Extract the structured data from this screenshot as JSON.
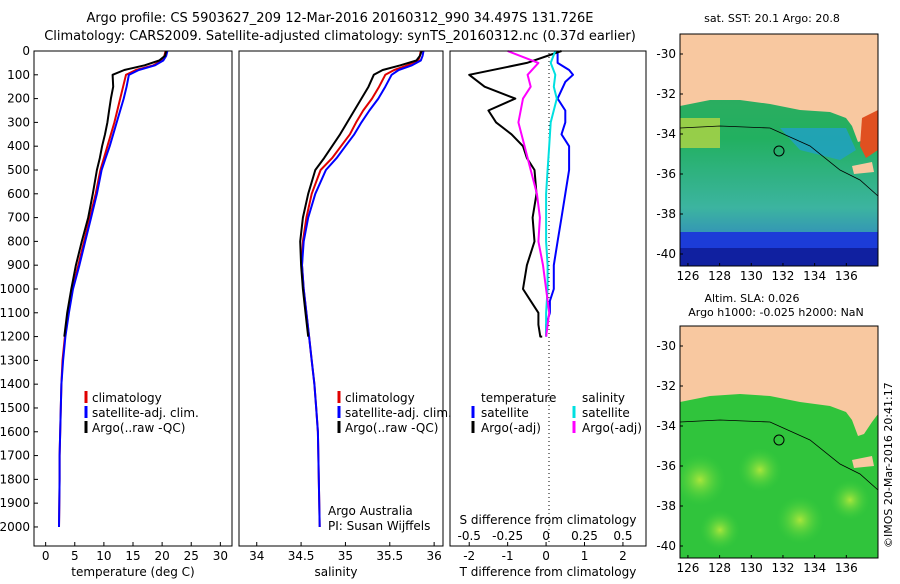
{
  "title": {
    "line1": "Argo profile: CS 5903627_209 12-Mar-2016 20160312_990 34.497S 131.726E",
    "line2": "Climatology: CARS2009. Satellite-adjusted climatology: synTS_20160312.nc (0.37d earlier)"
  },
  "watermark": "©IMOS 20-Mar-2016 20:41:17",
  "colors": {
    "climatology": "#e00000",
    "satellite": "#0000ff",
    "argo": "#000000",
    "salinity_satellite": "#00e0e0",
    "salinity_argo": "#ff00ff",
    "land": "#f8c8a0",
    "frame": "#000000"
  },
  "chart_data": [
    {
      "type": "line",
      "name": "temperature-profile",
      "xlabel": "temperature (deg C)",
      "ylabel": "",
      "xlim": [
        -2,
        32
      ],
      "ylim": [
        2080,
        0
      ],
      "xticks": [
        0,
        5,
        10,
        15,
        20,
        25,
        30
      ],
      "xtick_labels": [
        "0",
        "5",
        "10",
        "15",
        "20",
        "25",
        "30"
      ],
      "yticks": [
        0,
        100,
        200,
        300,
        400,
        500,
        600,
        700,
        800,
        900,
        1000,
        1100,
        1200,
        1300,
        1400,
        1500,
        1600,
        1700,
        1800,
        1900,
        2000
      ],
      "ytick_labels": [
        "0",
        "100",
        "200",
        "300",
        "400",
        "500",
        "600",
        "700",
        "800",
        "900",
        "1000",
        "1100",
        "1200",
        "1300",
        "1400",
        "1500",
        "1600",
        "1700",
        "1800",
        "1900",
        "2000"
      ],
      "legend": [
        "climatology",
        "satellite-adj. clim.",
        "Argo(..raw -QC)"
      ],
      "series": [
        {
          "name": "climatology",
          "color": "#e00000",
          "x": [
            20.6,
            20.4,
            20.0,
            18.5,
            15.5,
            13.8,
            13.3,
            12.8,
            12.3,
            11.8,
            11.2,
            10.6,
            10.0,
            9.4,
            8.6,
            7.6,
            6.6,
            5.6,
            4.6,
            3.9,
            3.3,
            2.9,
            2.7,
            2.6,
            2.5,
            2.4,
            2.4,
            2.3
          ],
          "y": [
            0,
            20,
            40,
            60,
            80,
            100,
            150,
            200,
            250,
            300,
            350,
            400,
            450,
            500,
            600,
            700,
            800,
            900,
            1000,
            1100,
            1200,
            1300,
            1400,
            1500,
            1600,
            1700,
            1800,
            2000
          ]
        },
        {
          "name": "satellite",
          "color": "#0000ff",
          "x": [
            20.9,
            20.7,
            20.2,
            18.8,
            16.0,
            14.3,
            13.9,
            13.4,
            12.8,
            12.2,
            11.6,
            11.0,
            10.3,
            9.6,
            8.8,
            7.8,
            6.8,
            5.8,
            4.7,
            4.0,
            3.4,
            3.0,
            2.7,
            2.6,
            2.5,
            2.4,
            2.4,
            2.3
          ],
          "y": [
            0,
            20,
            40,
            60,
            80,
            100,
            150,
            200,
            250,
            300,
            350,
            400,
            450,
            500,
            600,
            700,
            800,
            900,
            1000,
            1100,
            1200,
            1300,
            1400,
            1500,
            1600,
            1700,
            1800,
            2000
          ]
        },
        {
          "name": "argo",
          "color": "#000000",
          "x": [
            20.7,
            20.5,
            19.5,
            17.0,
            13.5,
            11.5,
            11.6,
            11.2,
            10.9,
            10.6,
            10.2,
            9.7,
            9.3,
            8.8,
            8.1,
            7.3,
            6.2,
            5.2,
            4.4,
            3.7,
            3.2
          ],
          "y": [
            0,
            20,
            40,
            60,
            80,
            100,
            150,
            200,
            250,
            300,
            350,
            400,
            450,
            500,
            600,
            700,
            800,
            900,
            1000,
            1100,
            1200
          ]
        }
      ]
    },
    {
      "type": "line",
      "name": "salinity-profile",
      "xlabel": "salinity",
      "ylabel": "",
      "xlim": [
        33.8,
        36.1
      ],
      "ylim": [
        2080,
        0
      ],
      "xticks": [
        34,
        34.5,
        35,
        35.5,
        36
      ],
      "xtick_labels": [
        "34",
        "34.5",
        "35",
        "35.5",
        "36"
      ],
      "legend": [
        "climatology",
        "satellite-adj. clim.",
        "Argo(..raw -QC)"
      ],
      "annotations": [
        "Argo Australia",
        "PI: Susan Wijffels"
      ],
      "series": [
        {
          "name": "climatology",
          "color": "#e00000",
          "x": [
            35.85,
            35.84,
            35.82,
            35.7,
            35.55,
            35.45,
            35.38,
            35.3,
            35.2,
            35.12,
            35.05,
            34.95,
            34.85,
            34.72,
            34.62,
            34.56,
            34.52,
            34.51,
            34.53,
            34.56,
            34.59,
            34.62,
            34.65,
            34.67,
            34.69,
            34.7,
            34.71
          ],
          "y": [
            0,
            20,
            40,
            60,
            80,
            100,
            150,
            200,
            250,
            300,
            350,
            400,
            450,
            500,
            600,
            700,
            800,
            900,
            1000,
            1100,
            1200,
            1300,
            1400,
            1500,
            1600,
            1800,
            2000
          ]
        },
        {
          "name": "satellite",
          "color": "#0000ff",
          "x": [
            35.88,
            35.87,
            35.85,
            35.75,
            35.6,
            35.52,
            35.45,
            35.37,
            35.27,
            35.18,
            35.1,
            35.0,
            34.9,
            34.78,
            34.66,
            34.58,
            34.53,
            34.51,
            34.53,
            34.56,
            34.59,
            34.62,
            34.65,
            34.67,
            34.69,
            34.7,
            34.71
          ],
          "y": [
            0,
            20,
            40,
            60,
            80,
            100,
            150,
            200,
            250,
            300,
            350,
            400,
            450,
            500,
            600,
            700,
            800,
            900,
            1000,
            1100,
            1200,
            1300,
            1400,
            1500,
            1600,
            1800,
            2000
          ]
        },
        {
          "name": "argo",
          "color": "#000000",
          "x": [
            35.86,
            35.84,
            35.8,
            35.62,
            35.42,
            35.32,
            35.26,
            35.18,
            35.1,
            35.02,
            34.94,
            34.85,
            34.76,
            34.66,
            34.58,
            34.52,
            34.49,
            34.5,
            34.52,
            34.55,
            34.58
          ],
          "y": [
            0,
            20,
            40,
            60,
            80,
            100,
            150,
            200,
            250,
            300,
            350,
            400,
            450,
            500,
            600,
            700,
            800,
            900,
            1000,
            1100,
            1200
          ]
        }
      ]
    },
    {
      "type": "line",
      "name": "difference-from-climatology",
      "xlabel": "T difference from climatology",
      "xlabel_top": "S difference from climatology",
      "xlim": [
        -2.5,
        2.6
      ],
      "ylim": [
        2080,
        0
      ],
      "xticks": [
        -2,
        -1,
        0,
        1,
        2
      ],
      "xtick_labels": [
        "-2",
        "-1",
        "0",
        "1",
        "2"
      ],
      "xticks_top": [
        -0.5,
        -0.25,
        0,
        0.25,
        0.5
      ],
      "xtick_labels_top": [
        "-0.5",
        "-0.25",
        "0",
        "0.25",
        "0.5"
      ],
      "legend_titles": [
        "temperature",
        "salinity"
      ],
      "legend": [
        "satellite",
        "Argo(-adj)",
        "satellite",
        "Argo(-adj)"
      ],
      "series": [
        {
          "name": "temperature-satellite",
          "color": "#0000ff",
          "x": [
            0.3,
            0.3,
            0.6,
            0.7,
            0.5,
            0.3,
            0.5,
            0.5,
            0.4,
            0.6,
            0.6,
            0.5,
            0.4,
            0.3,
            0.2,
            0.2,
            0.1,
            0.1,
            0.0,
            0.0,
            0.0
          ],
          "y": [
            0,
            50,
            80,
            100,
            130,
            200,
            250,
            300,
            350,
            400,
            500,
            600,
            700,
            800,
            900,
            1000,
            1050,
            1100,
            1150,
            1200,
            1200
          ]
        },
        {
          "name": "temperature-argo",
          "color": "#000000",
          "x": [
            0.4,
            -0.5,
            -2.0,
            -1.6,
            -0.8,
            -1.5,
            -1.3,
            -0.9,
            -0.6,
            -0.5,
            -0.3,
            -0.25,
            -0.35,
            -0.3,
            -0.5,
            -0.6,
            -0.4,
            -0.2,
            -0.2,
            -0.15,
            -0.1
          ],
          "y": [
            0,
            50,
            100,
            150,
            200,
            250,
            300,
            350,
            400,
            450,
            500,
            600,
            700,
            800,
            900,
            1000,
            1050,
            1100,
            1150,
            1200,
            1200
          ]
        },
        {
          "name": "salinity-satellite",
          "color": "#00e0e0",
          "x": [
            0.06,
            0.03,
            0.06,
            0.05,
            0.07,
            0.03,
            0.02,
            0.01,
            0.0,
            0.0,
            0.0,
            0.01,
            0.01,
            0.0,
            0.0
          ],
          "y": [
            0,
            50,
            100,
            150,
            200,
            300,
            400,
            500,
            600,
            700,
            800,
            900,
            1000,
            1100,
            1200
          ]
        },
        {
          "name": "salinity-argo",
          "color": "#ff00ff",
          "x": [
            -0.25,
            -0.05,
            -0.12,
            -0.1,
            -0.15,
            -0.18,
            -0.14,
            -0.1,
            -0.06,
            -0.04,
            -0.05,
            -0.02,
            0.0,
            0.02,
            0.0
          ],
          "y": [
            0,
            50,
            100,
            150,
            200,
            300,
            400,
            500,
            600,
            700,
            800,
            900,
            1000,
            1100,
            1200
          ]
        }
      ]
    },
    {
      "type": "heatmap",
      "name": "sst-map",
      "title": "sat. SST: 20.1  Argo: 20.8",
      "xlim": [
        125.5,
        138
      ],
      "ylim": [
        -40.6,
        -29
      ],
      "xticks": [
        126,
        128,
        130,
        132,
        134,
        136
      ],
      "xtick_labels": [
        "126",
        "128",
        "130",
        "132",
        "134",
        "136"
      ],
      "yticks": [
        -30,
        -32,
        -34,
        -36,
        -38,
        -40
      ],
      "ytick_labels": [
        "-30",
        "-32",
        "-34",
        "-36",
        "-38",
        "-40"
      ],
      "float_position": [
        131.726,
        -34.497
      ]
    },
    {
      "type": "heatmap",
      "name": "sla-map",
      "title_line1": "Altim. SLA: 0.026",
      "title_line2": "Argo h1000: -0.025 h2000: NaN",
      "xlim": [
        125.5,
        138
      ],
      "ylim": [
        -40.6,
        -29
      ],
      "xticks": [
        126,
        128,
        130,
        132,
        134,
        136
      ],
      "xtick_labels": [
        "126",
        "128",
        "130",
        "132",
        "134",
        "136"
      ],
      "yticks": [
        -30,
        -32,
        -34,
        -36,
        -38,
        -40
      ],
      "ytick_labels": [
        "-30",
        "-32",
        "-34",
        "-36",
        "-38",
        "-40"
      ],
      "float_position": [
        131.726,
        -34.497
      ]
    }
  ]
}
